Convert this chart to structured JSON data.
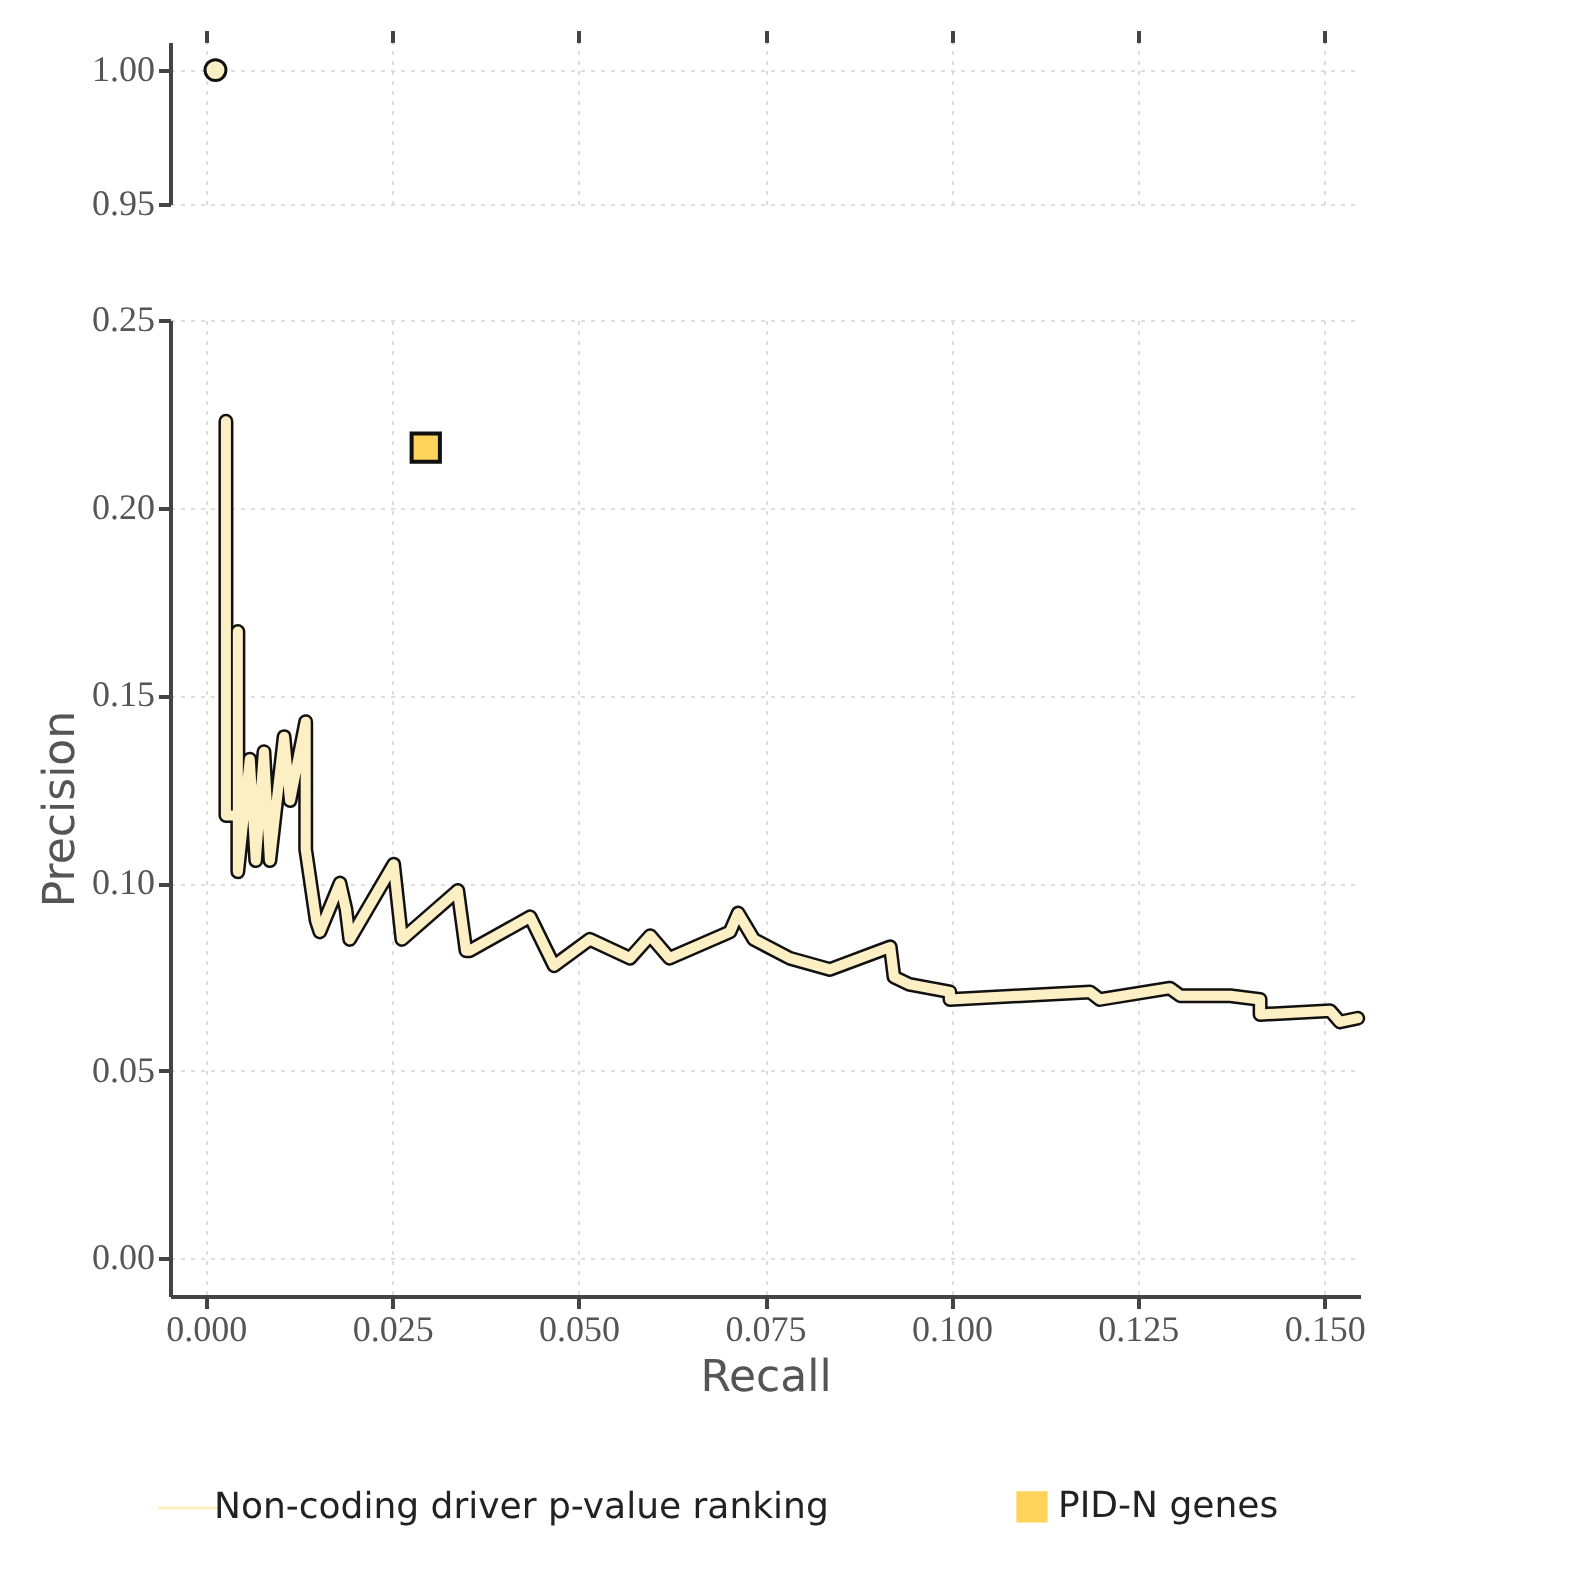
{
  "chart_data": [
    {
      "type": "scatter",
      "x": [
        0.0013
      ],
      "series": [
        {
          "color": "#fdefc4",
          "values": [
            1.0
          ]
        }
      ],
      "marker": "circle",
      "xlim": [
        -0.0048,
        0.1548
      ],
      "ylim": [
        0.95,
        1.0105
      ],
      "xticks": [
        {
          "value": 0,
          "label": null
        },
        {
          "value": 0.025,
          "label": null
        },
        {
          "value": 0.05,
          "label": null
        },
        {
          "value": 0.075,
          "label": null
        },
        {
          "value": 0.1,
          "label": null
        },
        {
          "value": 0.125,
          "label": null
        },
        {
          "value": 0.15,
          "label": null
        }
      ],
      "yticks": [
        {
          "value": 0.95,
          "label": "0.95"
        },
        {
          "value": 1.0,
          "label": "1.00"
        }
      ],
      "grid": true,
      "tick_labels": "y"
    },
    {
      "type": "line",
      "xlabel": "Recall",
      "ylabel": "Precision",
      "xlim": [
        -0.0048,
        0.1548
      ],
      "ylim": [
        -0.01,
        0.25
      ],
      "xticks": [
        {
          "value": 0,
          "label": "0.000"
        },
        {
          "value": 0.025,
          "label": "0.025"
        },
        {
          "value": 0.05,
          "label": "0.050"
        },
        {
          "value": 0.075,
          "label": "0.075"
        },
        {
          "value": 0.1,
          "label": "0.100"
        },
        {
          "value": 0.125,
          "label": "0.125"
        },
        {
          "value": 0.15,
          "label": "0.150"
        }
      ],
      "yticks": [
        {
          "value": 0,
          "label": "0.00"
        },
        {
          "value": 0.05,
          "label": "0.05"
        },
        {
          "value": 0.1,
          "label": "0.10"
        },
        {
          "value": 0.15,
          "label": "0.15"
        },
        {
          "value": 0.2,
          "label": "0.20"
        },
        {
          "value": 0.25,
          "label": "0.25"
        }
      ],
      "grid": true,
      "legend": "bottom",
      "series": [
        {
          "name": "Non-coding driver p-value ranking",
          "color": "#fdefc4",
          "x": [
            0.0027,
            0.0027,
            0.0043,
            0.0043,
            0.0043,
            0.0059,
            0.0067,
            0.0078,
            0.0086,
            0.0105,
            0.0113,
            0.0134,
            0.0134,
            0.0148,
            0.0153,
            0.018,
            0.0188,
            0.0193,
            0.0252,
            0.0263,
            0.0338,
            0.0349,
            0.0354,
            0.0435,
            0.0467,
            0.0515,
            0.0569,
            0.0596,
            0.0622,
            0.0703,
            0.0714,
            0.0735,
            0.0783,
            0.0837,
            0.0891,
            0.0918,
            0.0923,
            0.0944,
            0.0998,
            0.0998,
            0.1092,
            0.1186,
            0.1199,
            0.1293,
            0.1307,
            0.1374,
            0.1414,
            0.1414,
            0.1508,
            0.1521,
            0.1545
          ],
          "values": [
            0.223,
            0.118,
            0.118,
            0.167,
            0.103,
            0.133,
            0.106,
            0.135,
            0.106,
            0.139,
            0.122,
            0.143,
            0.109,
            0.09,
            0.087,
            0.1,
            0.093,
            0.085,
            0.105,
            0.085,
            0.098,
            0.082,
            0.082,
            0.091,
            0.078,
            0.085,
            0.08,
            0.086,
            0.08,
            0.087,
            0.092,
            0.085,
            0.08,
            0.077,
            0.081,
            0.083,
            0.075,
            0.073,
            0.071,
            0.069,
            0.07,
            0.071,
            0.069,
            0.072,
            0.07,
            0.07,
            0.069,
            0.065,
            0.066,
            0.063,
            0.064
          ]
        },
        {
          "name": "PID-N genes",
          "type": "scatter",
          "marker": "square",
          "color": "#fdd35a",
          "x": [
            0.0295
          ],
          "values": [
            0.216
          ]
        }
      ]
    }
  ]
}
